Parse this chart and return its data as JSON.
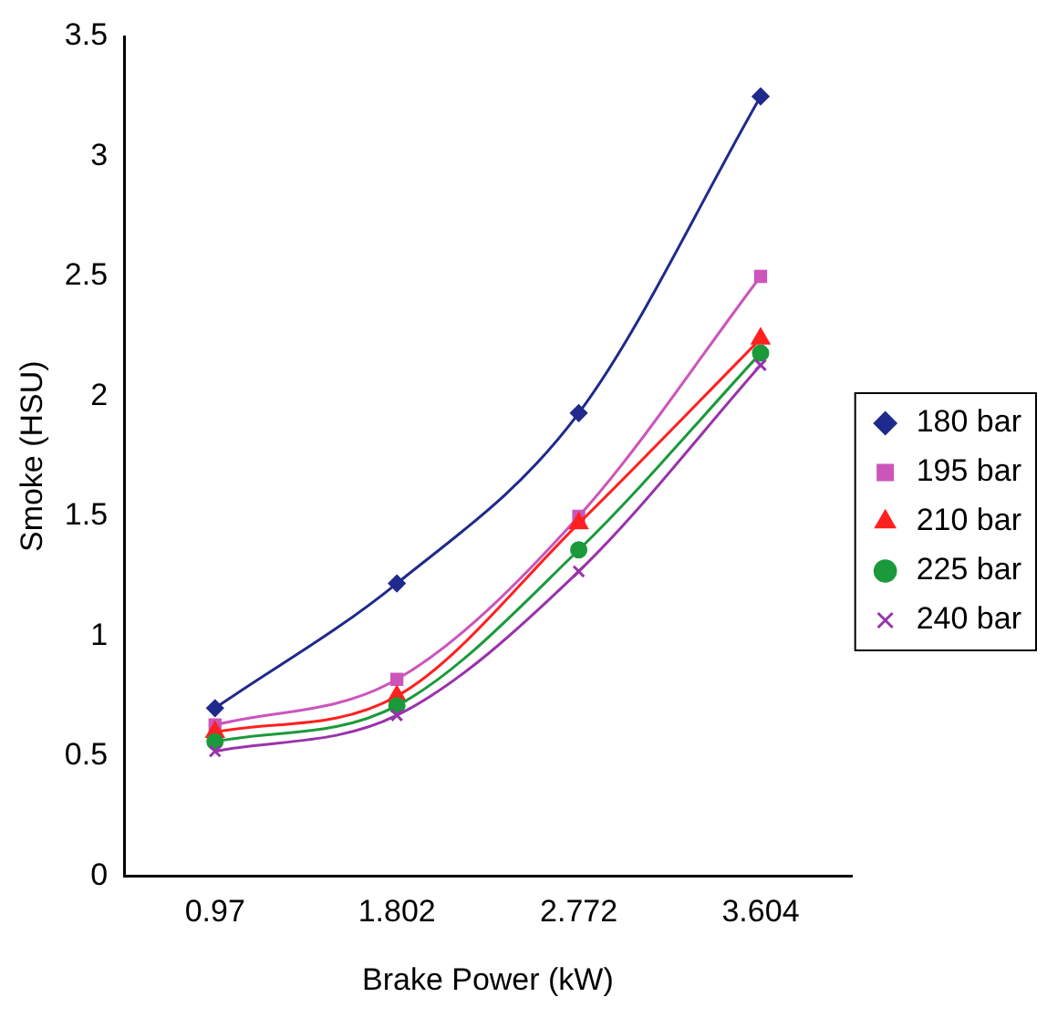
{
  "chart_data": {
    "type": "line",
    "xlabel": "Brake Power (kW)",
    "ylabel": "Smoke (HSU)",
    "categories": [
      "0.97",
      "1.802",
      "2.772",
      "3.604"
    ],
    "ylim": [
      0,
      3.5
    ],
    "yticks": [
      0,
      0.5,
      1,
      1.5,
      2,
      2.5,
      3,
      3.5
    ],
    "grid": false,
    "legend": "right",
    "line_style": "solid",
    "series": [
      {
        "name": "180 bar",
        "color": "#1f2a8c",
        "marker": "diamond",
        "values": [
          0.7,
          1.22,
          1.93,
          3.25
        ]
      },
      {
        "name": "195 bar",
        "color": "#cc55bb",
        "marker": "square",
        "values": [
          0.63,
          0.82,
          1.5,
          2.5
        ]
      },
      {
        "name": "210 bar",
        "color": "#ff2020",
        "marker": "triangle",
        "values": [
          0.6,
          0.75,
          1.47,
          2.24
        ]
      },
      {
        "name": "225 bar",
        "color": "#1a9a3a",
        "marker": "circle",
        "values": [
          0.56,
          0.71,
          1.36,
          2.18
        ]
      },
      {
        "name": "240 bar",
        "color": "#9933aa",
        "marker": "cross",
        "values": [
          0.52,
          0.67,
          1.27,
          2.13
        ]
      }
    ]
  }
}
